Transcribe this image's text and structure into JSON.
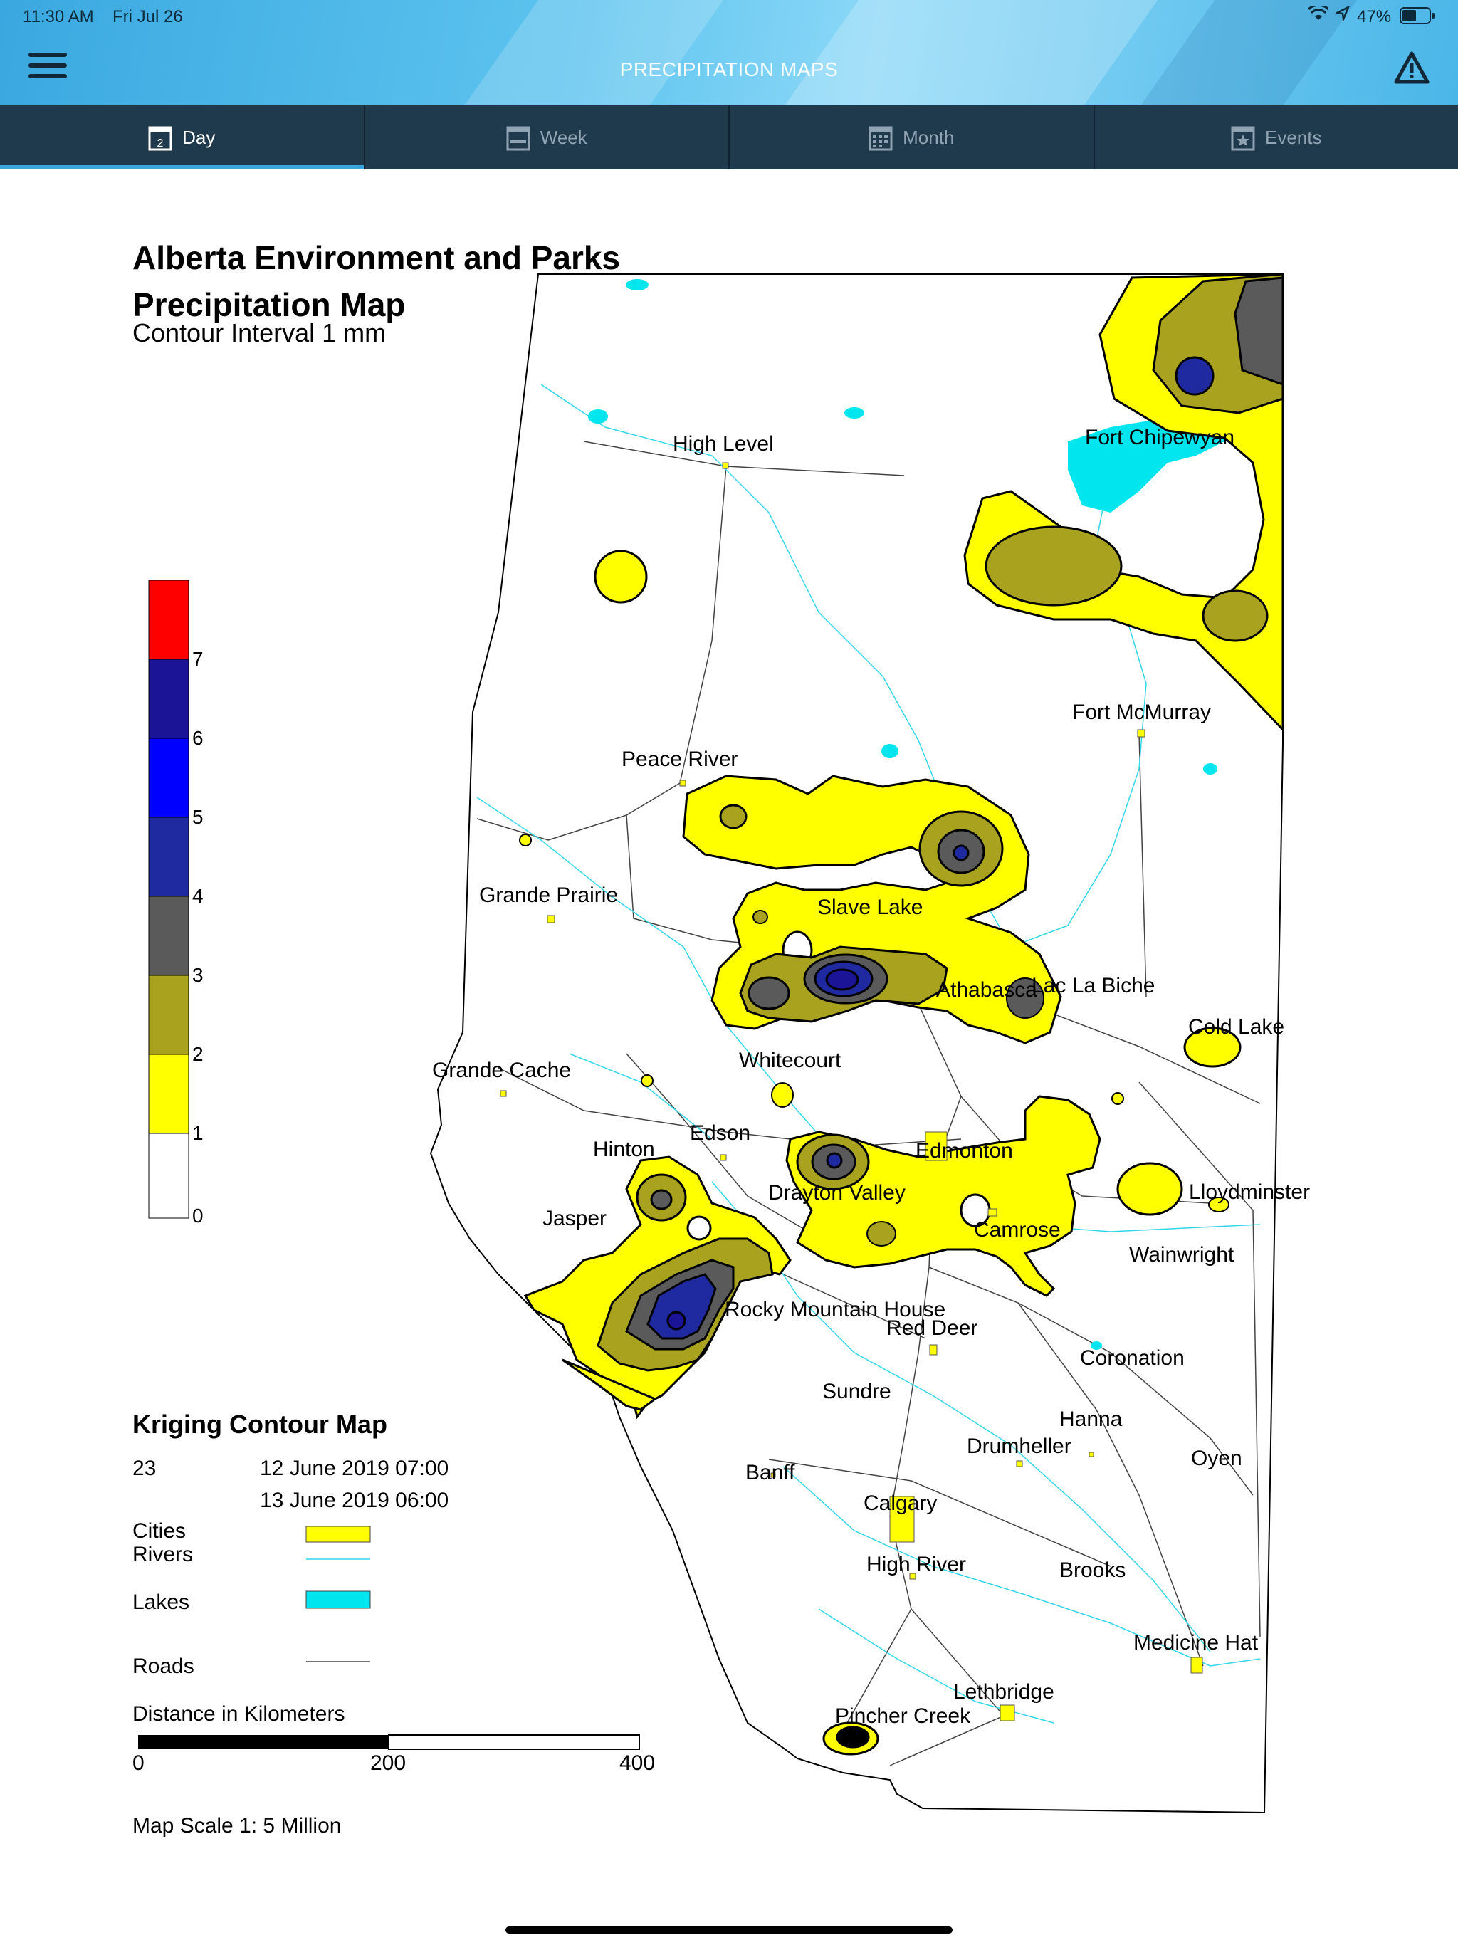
{
  "status": {
    "time": "11:30 AM",
    "date": "Fri Jul 26",
    "battery": "47%"
  },
  "header": {
    "title": "PRECIPITATION MAPS"
  },
  "tabs": [
    {
      "label": "Day",
      "icon": "calendar-day-icon",
      "active": true
    },
    {
      "label": "Week",
      "icon": "calendar-week-icon",
      "active": false
    },
    {
      "label": "Month",
      "icon": "calendar-month-icon",
      "active": false
    },
    {
      "label": "Events",
      "icon": "calendar-star-icon",
      "active": false
    }
  ],
  "map": {
    "title1": "Alberta Environment and Parks",
    "title2": "Precipitation Map",
    "subtitle": "Contour Interval 1 mm",
    "scale_labels": [
      "0",
      "1",
      "2",
      "3",
      "4",
      "5",
      "6",
      "7"
    ],
    "scale_colors": [
      "#ffffff",
      "#ffff00",
      "#a8a21e",
      "#5a5a5a",
      "#1f2aa0",
      "#0000ff",
      "#1c1496",
      "#ff0000"
    ],
    "cities": [
      "High Level",
      "Fort Chipewyan",
      "Fort McMurray",
      "Peace River",
      "Grande Prairie",
      "Slave Lake",
      "Athabasca",
      "Lac La Biche",
      "Cold Lake",
      "Whitecourt",
      "Grande Cache",
      "Hinton",
      "Edson",
      "Edmonton",
      "Drayton Valley",
      "Lloydminster",
      "Jasper",
      "Camrose",
      "Wainwright",
      "Rocky Mountain House",
      "Red Deer",
      "Coronation",
      "Sundre",
      "Hanna",
      "Drumheller",
      "Oyen",
      "Banff",
      "Calgary",
      "High River",
      "Brooks",
      "Medicine Hat",
      "Lethbridge",
      "Pincher Creek"
    ],
    "legend": {
      "heading": "Kriging Contour Map",
      "count": "23",
      "start": "12 June 2019 07:00",
      "end": "13 June 2019 06:00",
      "cities": "Cities",
      "rivers": "Rivers",
      "lakes": "Lakes",
      "roads": "Roads",
      "distance_title": "Distance in Kilometers",
      "distance_ticks": [
        "0",
        "200",
        "400"
      ],
      "scale_note": "Map Scale 1: 5 Million"
    }
  }
}
